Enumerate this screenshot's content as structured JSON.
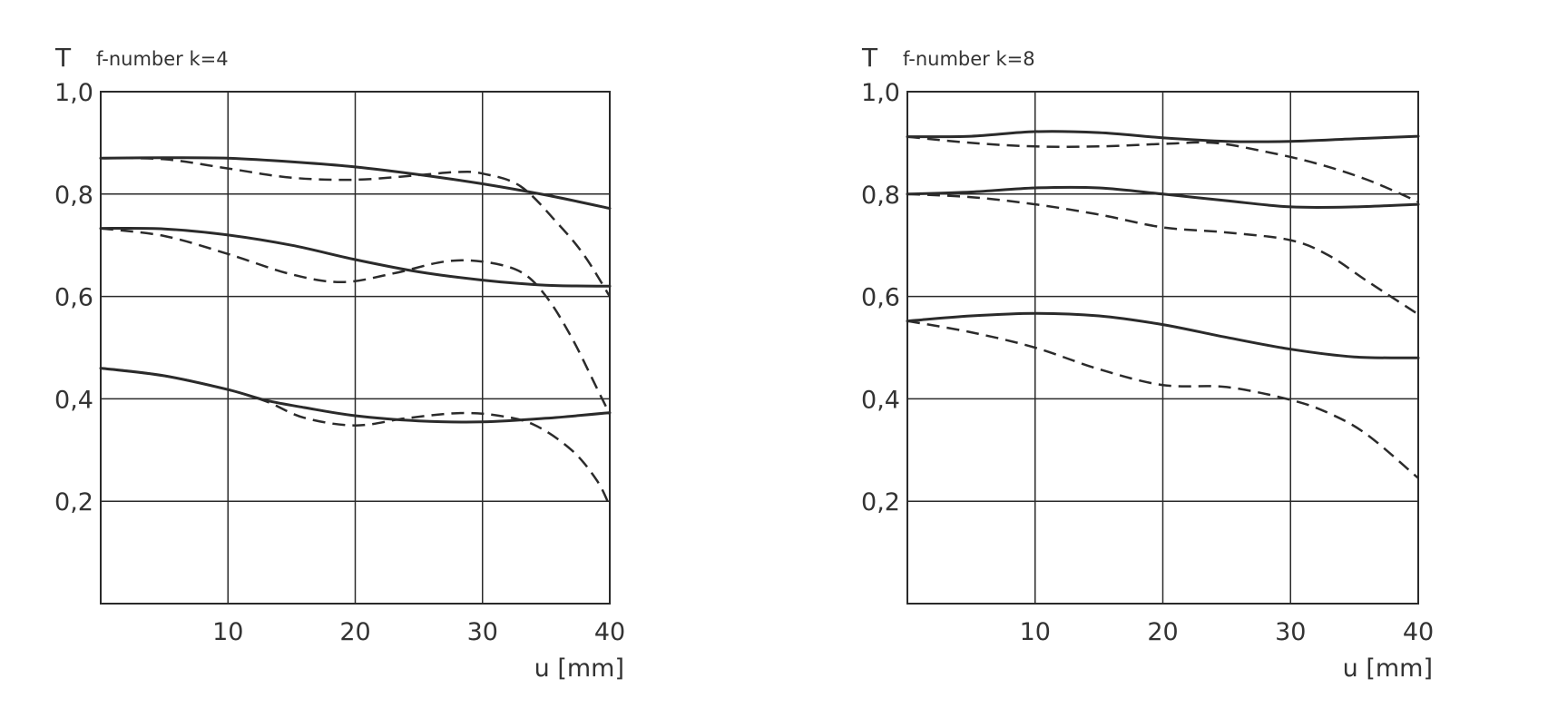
{
  "chart_data": [
    {
      "type": "line",
      "title": "f-number k=4",
      "ylabel": "T",
      "xlabel": "u [mm]",
      "xlim": [
        0,
        40
      ],
      "ylim": [
        0,
        1.0
      ],
      "x_ticks": [
        10,
        20,
        30,
        40
      ],
      "x_tick_labels": [
        "10",
        "20",
        "30",
        "40"
      ],
      "y_ticks": [
        0.2,
        0.4,
        0.6,
        0.8,
        1.0
      ],
      "y_tick_labels": [
        "0,2",
        "0,4",
        "0,6",
        "0,8",
        "1,0"
      ],
      "grid": true,
      "series": [
        {
          "style": "solid",
          "x": [
            0,
            5,
            10,
            15,
            20,
            25,
            30,
            35,
            40
          ],
          "y": [
            0.87,
            0.871,
            0.87,
            0.863,
            0.853,
            0.838,
            0.82,
            0.798,
            0.772
          ]
        },
        {
          "style": "dashed",
          "x": [
            0,
            5,
            10,
            15,
            20,
            25,
            28,
            30,
            33,
            36,
            38,
            40
          ],
          "y": [
            0.87,
            0.868,
            0.85,
            0.832,
            0.828,
            0.837,
            0.843,
            0.84,
            0.815,
            0.74,
            0.68,
            0.6
          ]
        },
        {
          "style": "solid",
          "x": [
            0,
            5,
            10,
            15,
            20,
            25,
            30,
            35,
            40
          ],
          "y": [
            0.733,
            0.732,
            0.72,
            0.7,
            0.672,
            0.648,
            0.632,
            0.622,
            0.62
          ]
        },
        {
          "style": "dashed",
          "x": [
            0,
            5,
            10,
            15,
            19,
            23,
            27,
            30,
            33,
            35,
            37,
            39,
            40
          ],
          "y": [
            0.733,
            0.718,
            0.683,
            0.643,
            0.628,
            0.645,
            0.668,
            0.668,
            0.648,
            0.6,
            0.52,
            0.42,
            0.37
          ]
        },
        {
          "style": "solid",
          "x": [
            0,
            5,
            10,
            13,
            16,
            20,
            25,
            30,
            35,
            40
          ],
          "y": [
            0.46,
            0.445,
            0.418,
            0.397,
            0.383,
            0.367,
            0.357,
            0.355,
            0.362,
            0.373
          ]
        },
        {
          "style": "dashed",
          "x": [
            0,
            5,
            10,
            13,
            16,
            20,
            24,
            28,
            31,
            34,
            37,
            39,
            40
          ],
          "y": [
            0.46,
            0.445,
            0.418,
            0.395,
            0.363,
            0.348,
            0.362,
            0.372,
            0.368,
            0.35,
            0.3,
            0.24,
            0.19
          ]
        }
      ]
    },
    {
      "type": "line",
      "title": "f-number k=8",
      "ylabel": "T",
      "xlabel": "u [mm]",
      "xlim": [
        0,
        40
      ],
      "ylim": [
        0,
        1.0
      ],
      "x_ticks": [
        10,
        20,
        30,
        40
      ],
      "x_tick_labels": [
        "10",
        "20",
        "30",
        "40"
      ],
      "y_ticks": [
        0.2,
        0.4,
        0.6,
        0.8,
        1.0
      ],
      "y_tick_labels": [
        "0,2",
        "0,4",
        "0,6",
        "0,8",
        "1,0"
      ],
      "grid": true,
      "series": [
        {
          "style": "solid",
          "x": [
            0,
            5,
            10,
            15,
            20,
            25,
            30,
            35,
            40
          ],
          "y": [
            0.912,
            0.913,
            0.922,
            0.92,
            0.91,
            0.903,
            0.903,
            0.908,
            0.913
          ]
        },
        {
          "style": "dashed",
          "x": [
            0,
            5,
            10,
            15,
            20,
            24,
            28,
            32,
            36,
            40
          ],
          "y": [
            0.912,
            0.9,
            0.893,
            0.893,
            0.898,
            0.9,
            0.883,
            0.86,
            0.828,
            0.785
          ]
        },
        {
          "style": "solid",
          "x": [
            0,
            5,
            10,
            15,
            20,
            25,
            30,
            35,
            40
          ],
          "y": [
            0.8,
            0.804,
            0.812,
            0.812,
            0.8,
            0.787,
            0.775,
            0.775,
            0.78
          ]
        },
        {
          "style": "dashed",
          "x": [
            0,
            5,
            10,
            15,
            20,
            25,
            30,
            33,
            36,
            40
          ],
          "y": [
            0.8,
            0.794,
            0.78,
            0.76,
            0.735,
            0.725,
            0.71,
            0.68,
            0.63,
            0.565
          ]
        },
        {
          "style": "solid",
          "x": [
            0,
            5,
            10,
            15,
            20,
            25,
            30,
            35,
            40
          ],
          "y": [
            0.552,
            0.562,
            0.567,
            0.562,
            0.545,
            0.52,
            0.497,
            0.482,
            0.48
          ]
        },
        {
          "style": "dashed",
          "x": [
            0,
            5,
            10,
            15,
            20,
            25,
            30,
            33,
            36,
            40
          ],
          "y": [
            0.552,
            0.53,
            0.5,
            0.458,
            0.427,
            0.423,
            0.398,
            0.372,
            0.33,
            0.245
          ]
        }
      ]
    }
  ]
}
